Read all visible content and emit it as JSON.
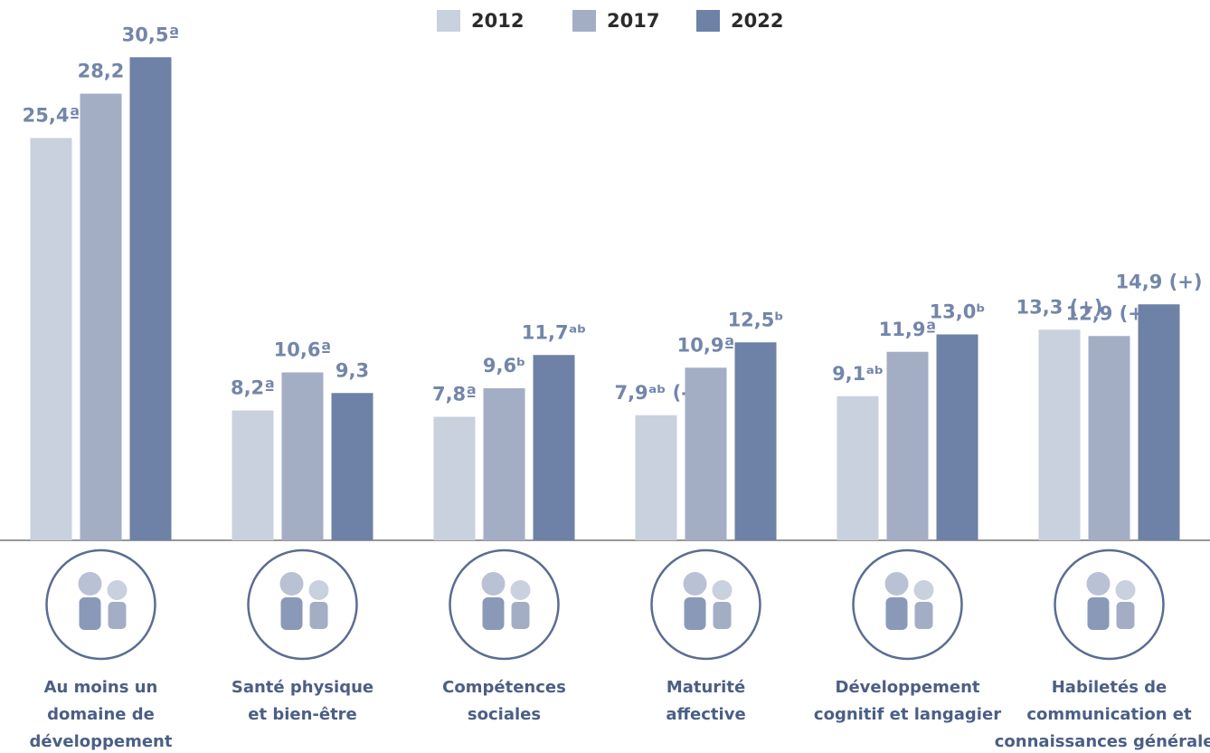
{
  "chart_data": {
    "type": "bar",
    "categories": [
      [
        "Au moins un",
        "domaine de",
        "développement"
      ],
      [
        "Santé physique",
        "et bien-être"
      ],
      [
        "Compétences",
        "sociales"
      ],
      [
        "Maturité",
        "affective"
      ],
      [
        "Développement",
        "cognitif et langagier"
      ],
      [
        "Habiletés de",
        "communication et",
        "connaissances générales"
      ]
    ],
    "series": [
      {
        "name": "2012",
        "color": "#c9d0de",
        "values": [
          25.4,
          8.2,
          7.8,
          7.9,
          9.1,
          13.3
        ],
        "value_labels": [
          "25,4ª",
          "8,2ª",
          "7,8ª",
          "7,9ᵃᵇ (-)",
          "9,1ᵃᵇ",
          "13,3 (+)"
        ]
      },
      {
        "name": "2017",
        "color": "#a3aec5",
        "values": [
          28.2,
          10.6,
          9.6,
          10.9,
          11.9,
          12.9
        ],
        "value_labels": [
          "28,2",
          "10,6ª",
          "9,6ᵇ",
          "10,9ª",
          "11,9ª",
          "12,9 (+)"
        ]
      },
      {
        "name": "2022",
        "color": "#6e81a6",
        "values": [
          30.5,
          9.3,
          11.7,
          12.5,
          13.0,
          14.9
        ],
        "value_labels": [
          "30,5ª",
          "9,3",
          "11,7ᵃᵇ",
          "12,5ᵇ",
          "13,0ᵇ",
          "14,9 (+)"
        ]
      }
    ],
    "ylim": [
      0,
      31
    ]
  }
}
